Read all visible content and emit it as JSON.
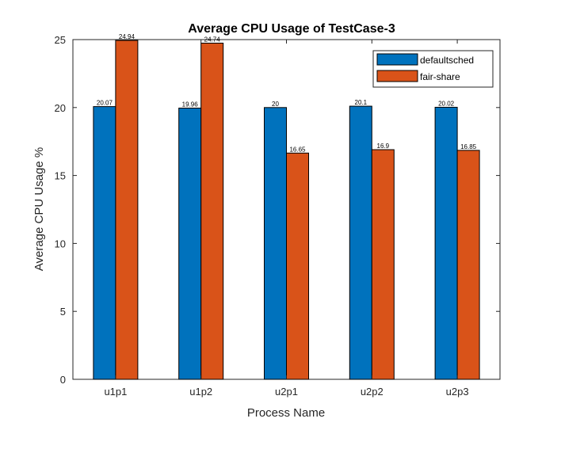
{
  "chart_data": {
    "type": "bar",
    "title": "Average CPU Usage of TestCase-3",
    "xlabel": "Process Name",
    "ylabel": "Average CPU Usage %",
    "categories": [
      "u1p1",
      "u1p2",
      "u2p1",
      "u2p2",
      "u2p3"
    ],
    "series": [
      {
        "name": "defaultsched",
        "color": "#0072BD",
        "values": [
          20.07,
          19.96,
          20,
          20.1,
          20.02
        ],
        "labels": [
          "20.07",
          "19.96",
          "20",
          "20.1",
          "20.02"
        ]
      },
      {
        "name": "fair-share",
        "color": "#D95319",
        "values": [
          24.94,
          24.74,
          16.65,
          16.9,
          16.85
        ],
        "labels": [
          "24.94",
          "24.74",
          "16.65",
          "16.9",
          "16.85"
        ]
      }
    ],
    "ylim": [
      0,
      25
    ],
    "yticks": [
      "0",
      "5",
      "10",
      "15",
      "20",
      "25"
    ],
    "grid": false,
    "legend_position": "top-right"
  }
}
